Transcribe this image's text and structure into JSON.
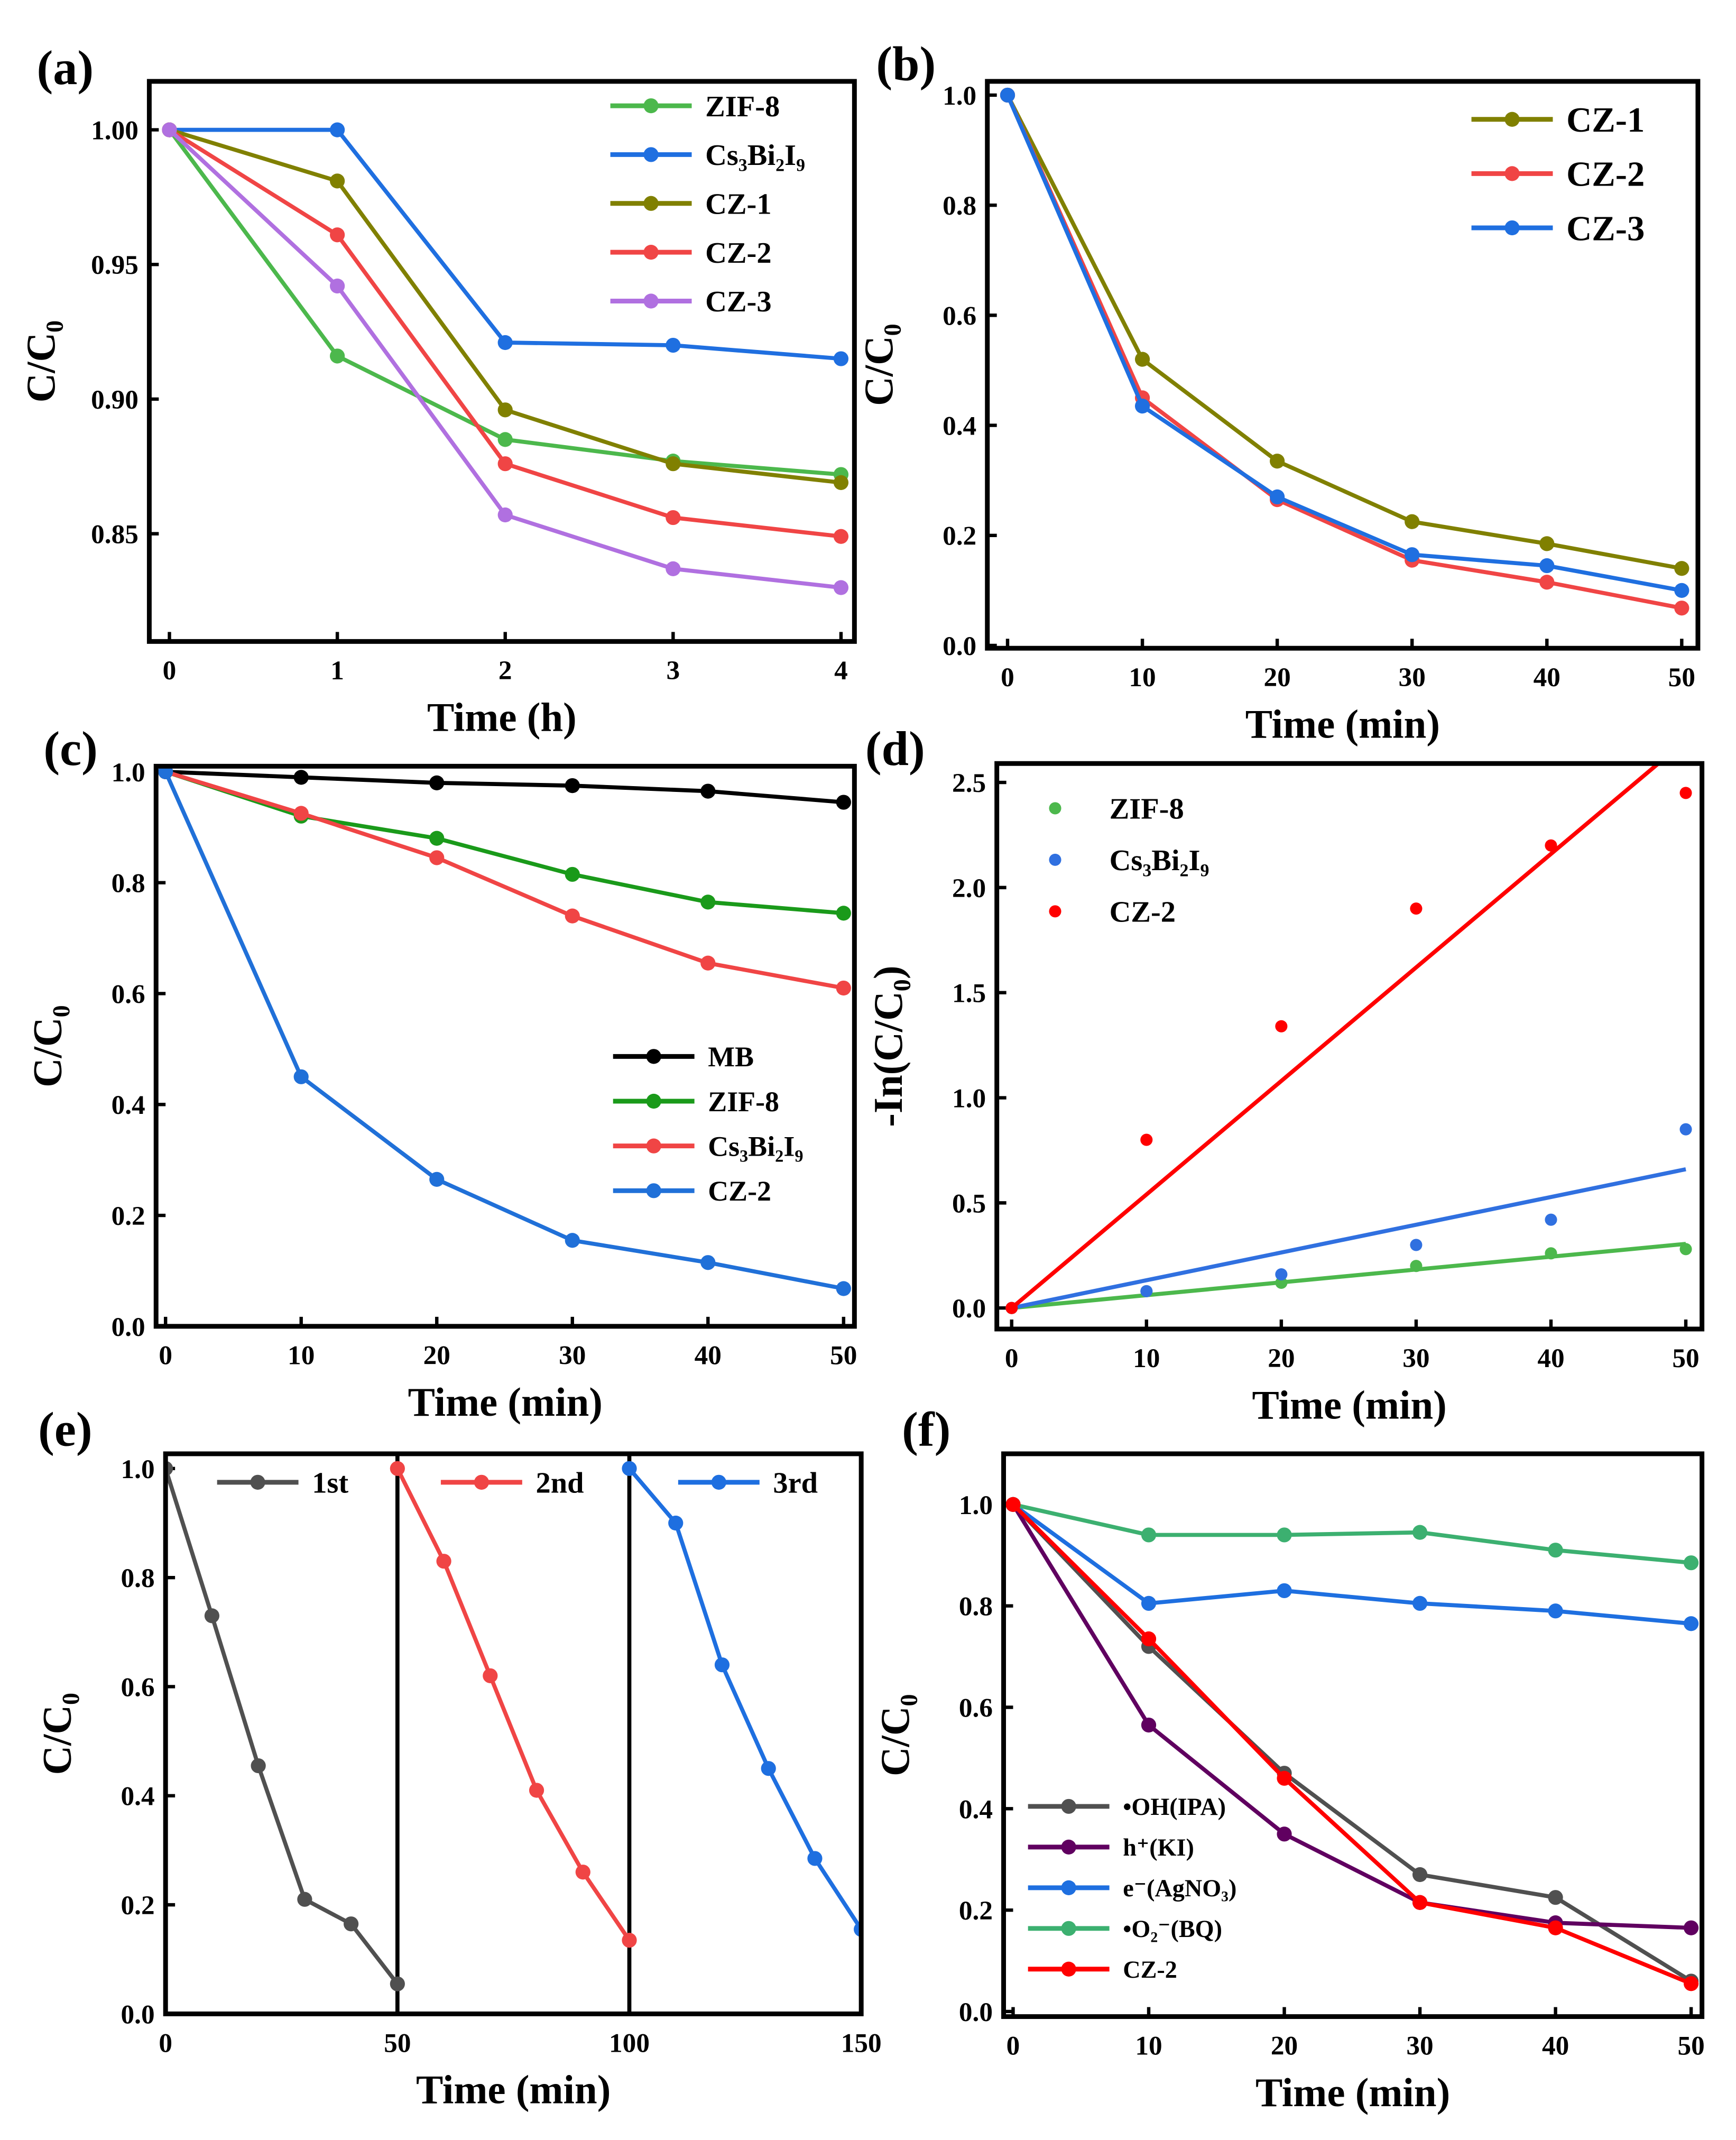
{
  "chart_data": [
    {
      "panel": "(a)",
      "type": "line",
      "xlabel": "Time (h)",
      "ylabel": "C/C₀",
      "xlim": [
        -0.12,
        4.08
      ],
      "ylim": [
        0.81,
        1.018
      ],
      "xticks": [
        "0",
        "1",
        "2",
        "3",
        "4"
      ],
      "xtick_values": [
        0,
        1,
        2,
        3,
        4
      ],
      "yticks": [
        "0.85",
        "0.90",
        "0.95",
        "1.00"
      ],
      "ytick_values": [
        0.85,
        0.9,
        0.95,
        1.0
      ],
      "legend": "top-right",
      "x": [
        0,
        1,
        2,
        3,
        4
      ],
      "series": [
        {
          "name": "ZIF-8",
          "color": "#4CB84C",
          "values": [
            1.0,
            0.916,
            0.885,
            0.877,
            0.872
          ]
        },
        {
          "name": "Cs₃Bi₂I₉",
          "color": "#1F6FE0",
          "values": [
            1.0,
            1.0,
            0.921,
            0.92,
            0.915
          ]
        },
        {
          "name": "CZ-1",
          "color": "#808000",
          "values": [
            1.0,
            0.981,
            0.896,
            0.876,
            0.869
          ]
        },
        {
          "name": "CZ-2",
          "color": "#F04545",
          "values": [
            1.0,
            0.961,
            0.876,
            0.856,
            0.849
          ]
        },
        {
          "name": "CZ-3",
          "color": "#B070E0",
          "values": [
            1.0,
            0.942,
            0.857,
            0.837,
            0.83
          ]
        }
      ]
    },
    {
      "panel": "(b)",
      "type": "line",
      "xlabel": "Time (min)",
      "ylabel": "C/C₀",
      "xlim": [
        -1.5,
        51.2
      ],
      "ylim": [
        -0.005,
        1.025
      ],
      "xticks": [
        "0",
        "10",
        "20",
        "30",
        "40",
        "50"
      ],
      "xtick_values": [
        0,
        10,
        20,
        30,
        40,
        50
      ],
      "yticks": [
        "0.0",
        "0.2",
        "0.4",
        "0.6",
        "0.8",
        "1.0"
      ],
      "ytick_values": [
        0,
        0.2,
        0.4,
        0.6,
        0.8,
        1.0
      ],
      "legend": "top-right",
      "x": [
        0,
        10,
        20,
        30,
        40,
        50
      ],
      "series": [
        {
          "name": "CZ-1",
          "color": "#808000",
          "values": [
            1.0,
            0.52,
            0.335,
            0.225,
            0.185,
            0.14
          ]
        },
        {
          "name": "CZ-2",
          "color": "#F04545",
          "values": [
            1.0,
            0.45,
            0.265,
            0.155,
            0.115,
            0.068
          ]
        },
        {
          "name": "CZ-3",
          "color": "#1F6FE0",
          "values": [
            1.0,
            0.435,
            0.27,
            0.165,
            0.145,
            0.1
          ]
        }
      ]
    },
    {
      "panel": "(c)",
      "type": "line",
      "xlabel": "Time (min)",
      "ylabel": "C/C₀",
      "xlim": [
        -0.7,
        50.8
      ],
      "ylim": [
        0,
        1.01
      ],
      "xticks": [
        "0",
        "10",
        "20",
        "30",
        "40",
        "50"
      ],
      "xtick_values": [
        0,
        10,
        20,
        30,
        40,
        50
      ],
      "yticks": [
        "0.0",
        "0.2",
        "0.4",
        "0.6",
        "0.8",
        "1.0"
      ],
      "ytick_values": [
        0,
        0.2,
        0.4,
        0.6,
        0.8,
        1.0
      ],
      "legend": "center-right",
      "x": [
        0,
        10,
        20,
        30,
        40,
        50
      ],
      "series": [
        {
          "name": "MB",
          "color": "#000000",
          "values": [
            1.0,
            0.99,
            0.98,
            0.975,
            0.965,
            0.945
          ]
        },
        {
          "name": "ZIF-8",
          "color": "#1A9A1A",
          "values": [
            1.0,
            0.92,
            0.88,
            0.815,
            0.765,
            0.745
          ]
        },
        {
          "name": "Cs₃Bi₂I₉",
          "color": "#F04545",
          "values": [
            1.0,
            0.925,
            0.845,
            0.74,
            0.655,
            0.61
          ]
        },
        {
          "name": "CZ-2",
          "color": "#2070D8",
          "values": [
            1.0,
            0.45,
            0.265,
            0.155,
            0.115,
            0.068
          ]
        }
      ]
    },
    {
      "panel": "(d)",
      "type": "scatter",
      "xlabel": "Time (min)",
      "ylabel": "-In(C/C₀)",
      "xlim": [
        -1.1,
        51.2
      ],
      "ylim": [
        -0.1,
        2.59
      ],
      "xticks": [
        "0",
        "10",
        "20",
        "30",
        "40",
        "50"
      ],
      "xtick_values": [
        0,
        10,
        20,
        30,
        40,
        50
      ],
      "yticks": [
        "0.0",
        "0.5",
        "1.0",
        "1.5",
        "2.0",
        "2.5"
      ],
      "ytick_values": [
        0,
        0.5,
        1.0,
        1.5,
        2.0,
        2.5
      ],
      "legend": "top-left",
      "x": [
        0,
        10,
        20,
        30,
        40,
        50
      ],
      "series": [
        {
          "name": "ZIF-8",
          "color": "#4CB84C",
          "values": [
            0,
            0.08,
            0.12,
            0.2,
            0.26,
            0.28
          ],
          "fit_slope": 0.0061
        },
        {
          "name": "Cs₃Bi₂I₉",
          "color": "#3070E0",
          "values": [
            0,
            0.08,
            0.16,
            0.3,
            0.42,
            0.85
          ],
          "fit_slope": 0.0132
        },
        {
          "name": "CZ-2",
          "color": "#FF0000",
          "values": [
            0,
            0.8,
            1.34,
            1.9,
            2.2,
            2.45
          ],
          "fit_slope": 0.054
        }
      ]
    },
    {
      "panel": "(e)",
      "type": "line",
      "xlabel": "Time (min)",
      "ylabel": "C/C₀",
      "xlim": [
        0,
        150
      ],
      "ylim": [
        0,
        1.027
      ],
      "xticks": [
        "0",
        "50",
        "100",
        "150"
      ],
      "xtick_values": [
        0,
        50,
        100,
        150
      ],
      "yticks": [
        "0.0",
        "0.2",
        "0.4",
        "0.6",
        "0.8",
        "1.0"
      ],
      "ytick_values": [
        0,
        0.2,
        0.4,
        0.6,
        0.8,
        1.0
      ],
      "legend": "top",
      "vlines": [
        50,
        100
      ],
      "series": [
        {
          "name": "1st",
          "color": "#505050",
          "x": [
            0,
            10,
            20,
            30,
            40,
            50
          ],
          "values": [
            1.0,
            0.73,
            0.455,
            0.21,
            0.165,
            0.055
          ]
        },
        {
          "name": "2nd",
          "color": "#F04545",
          "x": [
            50,
            60,
            70,
            80,
            90,
            100
          ],
          "values": [
            1.0,
            0.83,
            0.62,
            0.41,
            0.26,
            0.135
          ]
        },
        {
          "name": "3rd",
          "color": "#1E6FE0",
          "x": [
            100,
            110,
            120,
            130,
            140,
            150
          ],
          "values": [
            1.0,
            0.9,
            0.64,
            0.45,
            0.285,
            0.155
          ]
        }
      ]
    },
    {
      "panel": "(f)",
      "type": "line",
      "xlabel": "Time (min)",
      "ylabel": "C/C₀",
      "xlim": [
        -0.7,
        50.8
      ],
      "ylim": [
        -0.01,
        1.1
      ],
      "xticks": [
        "0",
        "10",
        "20",
        "30",
        "40",
        "50"
      ],
      "xtick_values": [
        0,
        10,
        20,
        30,
        40,
        50
      ],
      "yticks": [
        "0.0",
        "0.2",
        "0.4",
        "0.6",
        "0.8",
        "1.0"
      ],
      "ytick_values": [
        0,
        0.2,
        0.4,
        0.6,
        0.8,
        1.0
      ],
      "legend": "bottom-left",
      "x": [
        0,
        10,
        20,
        30,
        40,
        50
      ],
      "series": [
        {
          "name": "•OH(IPA)",
          "color": "#505050",
          "values": [
            1.0,
            0.72,
            0.47,
            0.27,
            0.225,
            0.06
          ]
        },
        {
          "name": "h⁺(KI)",
          "color": "#600060",
          "values": [
            1.0,
            0.565,
            0.35,
            0.215,
            0.175,
            0.165
          ]
        },
        {
          "name": "e⁻(AgNO₃)",
          "color": "#1E6FE0",
          "values": [
            1.0,
            0.805,
            0.83,
            0.805,
            0.79,
            0.765
          ]
        },
        {
          "name": "•O₂⁻(BQ)",
          "color": "#3CB070",
          "values": [
            1.0,
            0.94,
            0.94,
            0.945,
            0.91,
            0.885
          ]
        },
        {
          "name": "CZ-2",
          "color": "#FF0000",
          "values": [
            1.0,
            0.735,
            0.46,
            0.215,
            0.165,
            0.055
          ]
        }
      ]
    }
  ]
}
